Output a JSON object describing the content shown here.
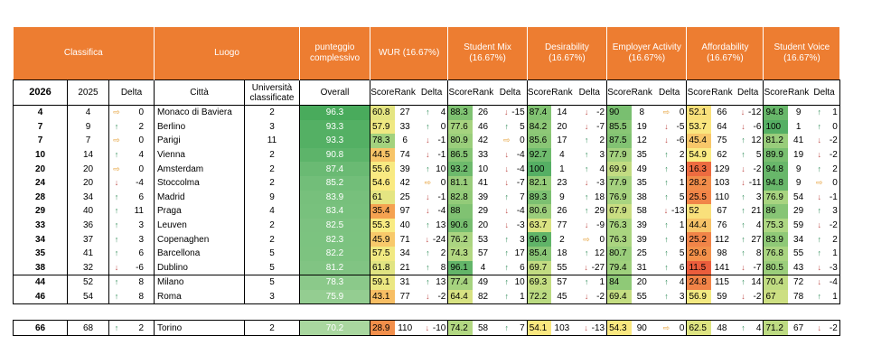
{
  "header": {
    "classifica": "Classifica",
    "luogo": "Luogo",
    "overall_line1": "punteggio",
    "overall_line2": "complessivo",
    "wur": "WUR (16.67%)",
    "student_mix_1": "Student Mix",
    "student_mix_2": "(16.67%)",
    "desirability_1": "Desirability",
    "desirability_2": "(16.67%)",
    "employer_1": "Employer Activity",
    "employer_2": "(16.67%)",
    "affordability_1": "Affordability",
    "affordability_2": "(16.67%)",
    "voice_1": "Student Voice",
    "voice_2": "(16.67%)"
  },
  "subheader": {
    "y2026": "2026",
    "y2025": "2025",
    "delta": "Delta",
    "citta": "Città",
    "univ_1": "Università",
    "univ_2": "classificate",
    "overall": "Overall",
    "score": "Score",
    "rank": "Rank"
  },
  "rows": [
    {
      "r26": "4",
      "r25": "4",
      "dir": "side",
      "d": "0",
      "city": "Monaco di Baviera",
      "uni": "2",
      "ov": "96.3",
      "c": [
        [
          "60.8",
          "27",
          "up",
          "4"
        ],
        [
          "88.3",
          "26",
          "down",
          "-15"
        ],
        [
          "87.4",
          "14",
          "down",
          "-2"
        ],
        [
          "90",
          "8",
          "side",
          "0"
        ],
        [
          "52.1",
          "66",
          "down",
          "-12"
        ],
        [
          "94.8",
          "9",
          "up",
          "1"
        ]
      ]
    },
    {
      "r26": "7",
      "r25": "9",
      "dir": "up",
      "d": "2",
      "city": "Berlino",
      "uni": "3",
      "ov": "93.3",
      "c": [
        [
          "57.9",
          "33",
          "up",
          "0"
        ],
        [
          "77.6",
          "46",
          "up",
          "5"
        ],
        [
          "84.2",
          "20",
          "down",
          "-7"
        ],
        [
          "85.5",
          "19",
          "down",
          "-5"
        ],
        [
          "53.7",
          "64",
          "down",
          "-6"
        ],
        [
          "100",
          "1",
          "up",
          "0"
        ]
      ]
    },
    {
      "r26": "7",
      "r25": "7",
      "dir": "side",
      "d": "0",
      "city": "Parigi",
      "uni": "11",
      "ov": "93.3",
      "c": [
        [
          "78.3",
          "6",
          "down",
          "-1"
        ],
        [
          "80.9",
          "42",
          "side",
          "0"
        ],
        [
          "85.6",
          "17",
          "up",
          "2"
        ],
        [
          "87.5",
          "12",
          "down",
          "-6"
        ],
        [
          "45.4",
          "75",
          "up",
          "12"
        ],
        [
          "81.2",
          "41",
          "down",
          "-2"
        ]
      ]
    },
    {
      "r26": "10",
      "r25": "14",
      "dir": "up",
      "d": "4",
      "city": "Vienna",
      "uni": "2",
      "ov": "90.8",
      "c": [
        [
          "44.5",
          "74",
          "down",
          "-1"
        ],
        [
          "86.5",
          "33",
          "down",
          "-4"
        ],
        [
          "92.7",
          "4",
          "up",
          "3"
        ],
        [
          "77.9",
          "35",
          "up",
          "2"
        ],
        [
          "54.9",
          "62",
          "up",
          "5"
        ],
        [
          "89.9",
          "19",
          "down",
          "-2"
        ]
      ]
    },
    {
      "r26": "20",
      "r25": "20",
      "dir": "side",
      "d": "0",
      "city": "Amsterdam",
      "uni": "2",
      "ov": "87.4",
      "c": [
        [
          "55.6",
          "39",
          "up",
          "10"
        ],
        [
          "93.2",
          "10",
          "down",
          "-4"
        ],
        [
          "100",
          "1",
          "up",
          "4"
        ],
        [
          "69.9",
          "49",
          "up",
          "3"
        ],
        [
          "16.3",
          "129",
          "down",
          "-2"
        ],
        [
          "94.8",
          "9",
          "up",
          "2"
        ]
      ]
    },
    {
      "r26": "24",
      "r25": "20",
      "dir": "down",
      "d": "-4",
      "city": "Stoccolma",
      "uni": "2",
      "ov": "85.2",
      "c": [
        [
          "54.6",
          "42",
          "side",
          "0"
        ],
        [
          "81.1",
          "41",
          "down",
          "-7"
        ],
        [
          "82.1",
          "23",
          "down",
          "-3"
        ],
        [
          "77.9",
          "35",
          "up",
          "1"
        ],
        [
          "28.2",
          "103",
          "down",
          "-11"
        ],
        [
          "94.8",
          "9",
          "side",
          "0"
        ]
      ]
    },
    {
      "r26": "28",
      "r25": "34",
      "dir": "up",
      "d": "6",
      "city": "Madrid",
      "uni": "9",
      "ov": "83.9",
      "c": [
        [
          "61",
          "25",
          "down",
          "-1"
        ],
        [
          "82.8",
          "39",
          "up",
          "7"
        ],
        [
          "89.3",
          "9",
          "up",
          "18"
        ],
        [
          "76.9",
          "38",
          "up",
          "5"
        ],
        [
          "25.5",
          "110",
          "up",
          "3"
        ],
        [
          "76.9",
          "54",
          "down",
          "-1"
        ]
      ]
    },
    {
      "r26": "29",
      "r25": "40",
      "dir": "up",
      "d": "11",
      "city": "Praga",
      "uni": "4",
      "ov": "83.4",
      "c": [
        [
          "35.4",
          "97",
          "down",
          "-4"
        ],
        [
          "88",
          "29",
          "down",
          "-4"
        ],
        [
          "80.6",
          "26",
          "up",
          "29"
        ],
        [
          "67.9",
          "58",
          "down",
          "-13"
        ],
        [
          "52",
          "67",
          "up",
          "21"
        ],
        [
          "86",
          "29",
          "up",
          "3"
        ]
      ]
    },
    {
      "r26": "33",
      "r25": "36",
      "dir": "up",
      "d": "3",
      "city": "Leuven",
      "uni": "2",
      "ov": "82.5",
      "c": [
        [
          "55.3",
          "40",
          "up",
          "13"
        ],
        [
          "90.6",
          "20",
          "down",
          "-3"
        ],
        [
          "63.7",
          "77",
          "down",
          "-9"
        ],
        [
          "76.3",
          "39",
          "up",
          "1"
        ],
        [
          "44.4",
          "76",
          "up",
          "4"
        ],
        [
          "75.3",
          "59",
          "down",
          "-2"
        ]
      ]
    },
    {
      "r26": "34",
      "r25": "37",
      "dir": "up",
      "d": "3",
      "city": "Copenaghen",
      "uni": "2",
      "ov": "82.3",
      "c": [
        [
          "45.9",
          "71",
          "down",
          "-24"
        ],
        [
          "76.2",
          "53",
          "up",
          "3"
        ],
        [
          "96.9",
          "2",
          "side",
          "0"
        ],
        [
          "76.3",
          "39",
          "up",
          "9"
        ],
        [
          "25.2",
          "112",
          "up",
          "27"
        ],
        [
          "83.9",
          "34",
          "up",
          "2"
        ]
      ]
    },
    {
      "r26": "35",
      "r25": "41",
      "dir": "up",
      "d": "6",
      "city": "Barcellona",
      "uni": "5",
      "ov": "82.2",
      "c": [
        [
          "57.5",
          "34",
          "up",
          "2"
        ],
        [
          "74.3",
          "57",
          "up",
          "17"
        ],
        [
          "85.4",
          "18",
          "up",
          "12"
        ],
        [
          "80.7",
          "25",
          "up",
          "5"
        ],
        [
          "29.6",
          "98",
          "up",
          "8"
        ],
        [
          "76.8",
          "55",
          "up",
          "1"
        ]
      ]
    },
    {
      "r26": "38",
      "r25": "32",
      "dir": "down",
      "d": "-6",
      "city": "Dublino",
      "uni": "5",
      "ov": "81.2",
      "c": [
        [
          "61.8",
          "21",
          "up",
          "8"
        ],
        [
          "96.1",
          "4",
          "up",
          "6"
        ],
        [
          "69.7",
          "55",
          "down",
          "-27"
        ],
        [
          "79.4",
          "31",
          "up",
          "6"
        ],
        [
          "11.5",
          "141",
          "down",
          "-7"
        ],
        [
          "80.5",
          "43",
          "down",
          "-3"
        ]
      ]
    },
    {
      "r26": "44",
      "r25": "52",
      "dir": "up",
      "d": "8",
      "city": "Milano",
      "uni": "5",
      "ov": "78.3",
      "c": [
        [
          "59.1",
          "31",
          "up",
          "13"
        ],
        [
          "77.4",
          "49",
          "up",
          "10"
        ],
        [
          "69.3",
          "57",
          "up",
          "1"
        ],
        [
          "84",
          "20",
          "up",
          "4"
        ],
        [
          "24.8",
          "115",
          "up",
          "14"
        ],
        [
          "70.4",
          "72",
          "down",
          "-4"
        ]
      ]
    },
    {
      "r26": "46",
      "r25": "54",
      "dir": "up",
      "d": "8",
      "city": "Roma",
      "uni": "3",
      "ov": "75.9",
      "c": [
        [
          "43.1",
          "77",
          "down",
          "-2"
        ],
        [
          "64.4",
          "82",
          "up",
          "1"
        ],
        [
          "72.2",
          "45",
          "down",
          "-2"
        ],
        [
          "69.4",
          "55",
          "up",
          "3"
        ],
        [
          "56.9",
          "59",
          "down",
          "-2"
        ],
        [
          "67",
          "78",
          "up",
          "1"
        ]
      ]
    },
    {
      "r26": "66",
      "r25": "68",
      "dir": "up",
      "d": "2",
      "city": "Torino",
      "uni": "2",
      "ov": "70.2",
      "c": [
        [
          "28.9",
          "110",
          "down",
          "-10"
        ],
        [
          "74.2",
          "58",
          "up",
          "7"
        ],
        [
          "54.1",
          "103",
          "down",
          "-13"
        ],
        [
          "54.3",
          "90",
          "side",
          "0"
        ],
        [
          "62.5",
          "48",
          "up",
          "4"
        ],
        [
          "71.2",
          "67",
          "down",
          "-2"
        ]
      ]
    }
  ]
}
